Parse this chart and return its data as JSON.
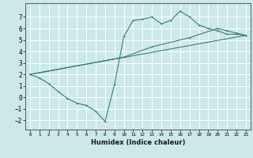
{
  "xlabel": "Humidex (Indice chaleur)",
  "bg_color": "#cce8e8",
  "grid_color": "#ffffff",
  "line_color": "#2d7a6a",
  "line1_x": [
    0,
    1,
    2,
    3,
    4,
    5,
    6,
    7,
    8,
    9,
    10,
    11,
    12,
    13,
    14,
    15,
    16,
    17,
    18,
    19,
    20,
    21,
    22,
    23
  ],
  "line1_y": [
    2.0,
    1.7,
    1.2,
    0.5,
    -0.1,
    -0.5,
    -0.7,
    -1.2,
    -2.1,
    1.1,
    5.3,
    6.7,
    6.8,
    7.0,
    6.4,
    6.7,
    7.5,
    7.0,
    6.3,
    6.0,
    5.8,
    5.5,
    5.5,
    5.4
  ],
  "line2_x": [
    0,
    23
  ],
  "line2_y": [
    2.0,
    5.4
  ],
  "line3_x": [
    0,
    10,
    13,
    17,
    20,
    21,
    22,
    23
  ],
  "line3_y": [
    2.0,
    3.5,
    4.4,
    5.2,
    6.0,
    5.8,
    5.6,
    5.4
  ],
  "xlim": [
    -0.5,
    23.5
  ],
  "ylim": [
    -2.8,
    8.2
  ],
  "yticks": [
    -2,
    -1,
    0,
    1,
    2,
    3,
    4,
    5,
    6,
    7
  ],
  "xticks": [
    0,
    1,
    2,
    3,
    4,
    5,
    6,
    7,
    8,
    9,
    10,
    11,
    12,
    13,
    14,
    15,
    16,
    17,
    18,
    19,
    20,
    21,
    22,
    23
  ],
  "xlabel_fontsize": 6.0,
  "tick_fontsize_x": 4.2,
  "tick_fontsize_y": 5.5,
  "lw": 0.75,
  "ms": 2.0,
  "mew": 0.7
}
